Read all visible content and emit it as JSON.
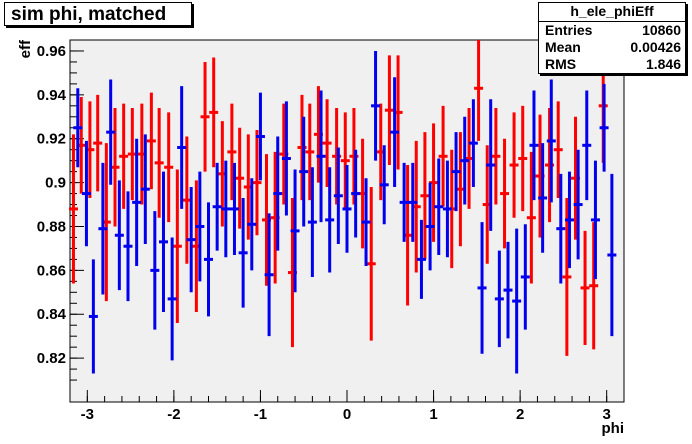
{
  "title": "sim phi, matched",
  "stats": {
    "name": "h_ele_phiEff",
    "rows": [
      {
        "label": "Entries",
        "value": "10860"
      },
      {
        "label": "Mean",
        "value": "0.00426"
      },
      {
        "label": "RMS",
        "value": "1.846"
      }
    ]
  },
  "chart_data": {
    "type": "scatter",
    "xlabel": "phi",
    "ylabel": "eff",
    "xlim": [
      -3.2,
      3.2
    ],
    "ylim": [
      0.8,
      0.965
    ],
    "xticks": [
      -3,
      -2,
      -1,
      0,
      1,
      2,
      3
    ],
    "yticks": [
      0.82,
      0.84,
      0.86,
      0.88,
      0.9,
      0.92,
      0.94,
      0.96
    ],
    "series": [
      {
        "color": "#ff0000",
        "points": [
          {
            "x": -3.16,
            "y": 0.888,
            "err": 0.034
          },
          {
            "x": -3.07,
            "y": 0.917,
            "err": 0.022
          },
          {
            "x": -2.97,
            "y": 0.915,
            "err": 0.022
          },
          {
            "x": -2.88,
            "y": 0.918,
            "err": 0.022
          },
          {
            "x": -2.78,
            "y": 0.882,
            "err": 0.036
          },
          {
            "x": -2.68,
            "y": 0.907,
            "err": 0.027
          },
          {
            "x": -2.58,
            "y": 0.912,
            "err": 0.024
          },
          {
            "x": -2.48,
            "y": 0.913,
            "err": 0.021
          },
          {
            "x": -2.37,
            "y": 0.913,
            "err": 0.023
          },
          {
            "x": -2.26,
            "y": 0.919,
            "err": 0.022
          },
          {
            "x": -2.17,
            "y": 0.909,
            "err": 0.025
          },
          {
            "x": -2.06,
            "y": 0.907,
            "err": 0.025
          },
          {
            "x": -1.96,
            "y": 0.871,
            "err": 0.035
          },
          {
            "x": -1.85,
            "y": 0.892,
            "err": 0.029
          },
          {
            "x": -1.74,
            "y": 0.871,
            "err": 0.03
          },
          {
            "x": -1.64,
            "y": 0.93,
            "err": 0.025
          },
          {
            "x": -1.54,
            "y": 0.932,
            "err": 0.025
          },
          {
            "x": -1.44,
            "y": 0.904,
            "err": 0.024
          },
          {
            "x": -1.33,
            "y": 0.914,
            "err": 0.022
          },
          {
            "x": -1.24,
            "y": 0.902,
            "err": 0.023
          },
          {
            "x": -1.14,
            "y": 0.898,
            "err": 0.024
          },
          {
            "x": -1.04,
            "y": 0.9,
            "err": 0.024
          },
          {
            "x": -0.93,
            "y": 0.883,
            "err": 0.03
          },
          {
            "x": -0.83,
            "y": 0.884,
            "err": 0.03
          },
          {
            "x": -0.73,
            "y": 0.913,
            "err": 0.023
          },
          {
            "x": -0.63,
            "y": 0.859,
            "err": 0.034
          },
          {
            "x": -0.52,
            "y": 0.916,
            "err": 0.024
          },
          {
            "x": -0.43,
            "y": 0.914,
            "err": 0.022
          },
          {
            "x": -0.33,
            "y": 0.922,
            "err": 0.022
          },
          {
            "x": -0.23,
            "y": 0.918,
            "err": 0.02
          },
          {
            "x": -0.12,
            "y": 0.912,
            "err": 0.022
          },
          {
            "x": -0.02,
            "y": 0.91,
            "err": 0.022
          },
          {
            "x": 0.08,
            "y": 0.912,
            "err": 0.022
          },
          {
            "x": 0.18,
            "y": 0.895,
            "err": 0.025
          },
          {
            "x": 0.28,
            "y": 0.863,
            "err": 0.035
          },
          {
            "x": 0.39,
            "y": 0.914,
            "err": 0.022
          },
          {
            "x": 0.49,
            "y": 0.933,
            "err": 0.025
          },
          {
            "x": 0.59,
            "y": 0.932,
            "err": 0.026
          },
          {
            "x": 0.7,
            "y": 0.876,
            "err": 0.032
          },
          {
            "x": 0.8,
            "y": 0.889,
            "err": 0.03
          },
          {
            "x": 0.9,
            "y": 0.894,
            "err": 0.029
          },
          {
            "x": 1.0,
            "y": 0.9,
            "err": 0.027
          },
          {
            "x": 1.11,
            "y": 0.912,
            "err": 0.023
          },
          {
            "x": 1.21,
            "y": 0.888,
            "err": 0.027
          },
          {
            "x": 1.31,
            "y": 0.897,
            "err": 0.026
          },
          {
            "x": 1.41,
            "y": 0.911,
            "err": 0.023
          },
          {
            "x": 1.52,
            "y": 0.943,
            "err": 0.024
          },
          {
            "x": 1.62,
            "y": 0.89,
            "err": 0.027
          },
          {
            "x": 1.72,
            "y": 0.912,
            "err": 0.022
          },
          {
            "x": 1.82,
            "y": 0.895,
            "err": 0.025
          },
          {
            "x": 1.93,
            "y": 0.908,
            "err": 0.024
          },
          {
            "x": 2.03,
            "y": 0.911,
            "err": 0.024
          },
          {
            "x": 2.13,
            "y": 0.884,
            "err": 0.03
          },
          {
            "x": 2.23,
            "y": 0.903,
            "err": 0.028
          },
          {
            "x": 2.34,
            "y": 0.908,
            "err": 0.026
          },
          {
            "x": 2.44,
            "y": 0.915,
            "err": 0.022
          },
          {
            "x": 2.54,
            "y": 0.857,
            "err": 0.036
          },
          {
            "x": 2.64,
            "y": 0.902,
            "err": 0.028
          },
          {
            "x": 2.75,
            "y": 0.852,
            "err": 0.026
          },
          {
            "x": 2.85,
            "y": 0.853,
            "err": 0.029
          },
          {
            "x": 2.96,
            "y": 0.935,
            "err": 0.026
          }
        ]
      },
      {
        "color": "#0000ee",
        "points": [
          {
            "x": -3.11,
            "y": 0.925,
            "err": 0.018
          },
          {
            "x": -3.01,
            "y": 0.895,
            "err": 0.024
          },
          {
            "x": -2.93,
            "y": 0.839,
            "err": 0.026
          },
          {
            "x": -2.82,
            "y": 0.879,
            "err": 0.03
          },
          {
            "x": -2.73,
            "y": 0.923,
            "err": 0.024
          },
          {
            "x": -2.63,
            "y": 0.876,
            "err": 0.025
          },
          {
            "x": -2.53,
            "y": 0.871,
            "err": 0.025
          },
          {
            "x": -2.43,
            "y": 0.891,
            "err": 0.029
          },
          {
            "x": -2.33,
            "y": 0.897,
            "err": 0.025
          },
          {
            "x": -2.22,
            "y": 0.86,
            "err": 0.027
          },
          {
            "x": -2.12,
            "y": 0.873,
            "err": 0.032
          },
          {
            "x": -2.02,
            "y": 0.847,
            "err": 0.028
          },
          {
            "x": -1.91,
            "y": 0.916,
            "err": 0.028
          },
          {
            "x": -1.8,
            "y": 0.874,
            "err": 0.024
          },
          {
            "x": -1.7,
            "y": 0.88,
            "err": 0.025
          },
          {
            "x": -1.6,
            "y": 0.865,
            "err": 0.026
          },
          {
            "x": -1.5,
            "y": 0.889,
            "err": 0.02
          },
          {
            "x": -1.4,
            "y": 0.888,
            "err": 0.022
          },
          {
            "x": -1.3,
            "y": 0.888,
            "err": 0.021
          },
          {
            "x": -1.2,
            "y": 0.868,
            "err": 0.025
          },
          {
            "x": -1.1,
            "y": 0.881,
            "err": 0.021
          },
          {
            "x": -1.0,
            "y": 0.921,
            "err": 0.02
          },
          {
            "x": -0.9,
            "y": 0.858,
            "err": 0.028
          },
          {
            "x": -0.8,
            "y": 0.895,
            "err": 0.026
          },
          {
            "x": -0.7,
            "y": 0.911,
            "err": 0.026
          },
          {
            "x": -0.6,
            "y": 0.878,
            "err": 0.028
          },
          {
            "x": -0.5,
            "y": 0.905,
            "err": 0.025
          },
          {
            "x": -0.4,
            "y": 0.882,
            "err": 0.025
          },
          {
            "x": -0.3,
            "y": 0.912,
            "err": 0.03
          },
          {
            "x": -0.2,
            "y": 0.883,
            "err": 0.024
          },
          {
            "x": -0.1,
            "y": 0.894,
            "err": 0.022
          },
          {
            "x": 0.0,
            "y": 0.888,
            "err": 0.02
          },
          {
            "x": 0.1,
            "y": 0.895,
            "err": 0.02
          },
          {
            "x": 0.22,
            "y": 0.882,
            "err": 0.02
          },
          {
            "x": 0.33,
            "y": 0.935,
            "err": 0.025
          },
          {
            "x": 0.43,
            "y": 0.899,
            "err": 0.018
          },
          {
            "x": 0.55,
            "y": 0.923,
            "err": 0.025
          },
          {
            "x": 0.66,
            "y": 0.891,
            "err": 0.018
          },
          {
            "x": 0.76,
            "y": 0.891,
            "err": 0.018
          },
          {
            "x": 0.86,
            "y": 0.865,
            "err": 0.018
          },
          {
            "x": 0.96,
            "y": 0.88,
            "err": 0.02
          },
          {
            "x": 1.06,
            "y": 0.889,
            "err": 0.022
          },
          {
            "x": 1.16,
            "y": 0.888,
            "err": 0.022
          },
          {
            "x": 1.26,
            "y": 0.905,
            "err": 0.018
          },
          {
            "x": 1.36,
            "y": 0.91,
            "err": 0.02
          },
          {
            "x": 1.46,
            "y": 0.918,
            "err": 0.02
          },
          {
            "x": 1.56,
            "y": 0.852,
            "err": 0.03
          },
          {
            "x": 1.66,
            "y": 0.908,
            "err": 0.03
          },
          {
            "x": 1.76,
            "y": 0.847,
            "err": 0.022
          },
          {
            "x": 1.86,
            "y": 0.851,
            "err": 0.022
          },
          {
            "x": 1.96,
            "y": 0.846,
            "err": 0.033
          },
          {
            "x": 2.06,
            "y": 0.857,
            "err": 0.024
          },
          {
            "x": 2.16,
            "y": 0.917,
            "err": 0.025
          },
          {
            "x": 2.26,
            "y": 0.893,
            "err": 0.025
          },
          {
            "x": 2.36,
            "y": 0.919,
            "err": 0.028
          },
          {
            "x": 2.47,
            "y": 0.879,
            "err": 0.025
          },
          {
            "x": 2.57,
            "y": 0.883,
            "err": 0.022
          },
          {
            "x": 2.67,
            "y": 0.89,
            "err": 0.025
          },
          {
            "x": 2.77,
            "y": 0.917,
            "err": 0.025
          },
          {
            "x": 2.87,
            "y": 0.883,
            "err": 0.027
          },
          {
            "x": 2.97,
            "y": 0.925,
            "err": 0.02
          },
          {
            "x": 3.06,
            "y": 0.867,
            "err": 0.037
          }
        ]
      }
    ]
  }
}
